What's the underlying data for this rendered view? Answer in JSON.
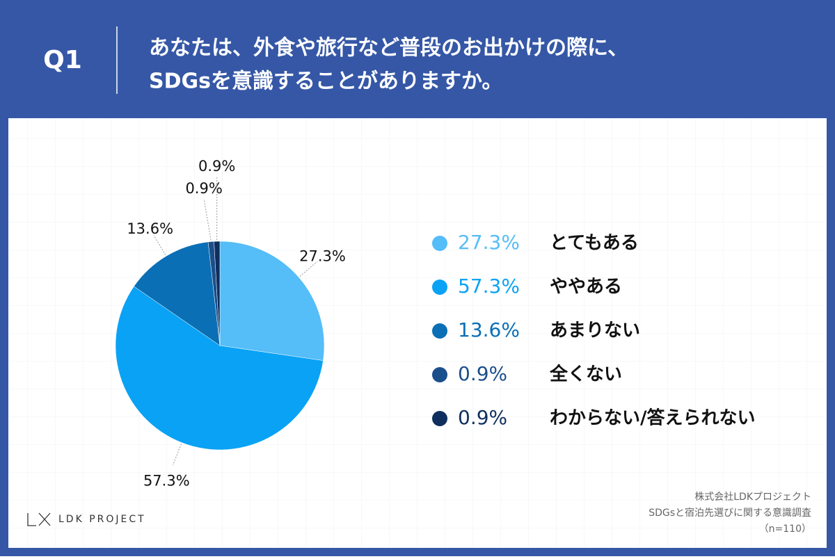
{
  "header": {
    "label": "Q1",
    "question": [
      "あなたは、外食や旅行など普段のお出かけの際に、",
      "SDGsを意識することがありますか。"
    ]
  },
  "chart_data": {
    "type": "pie",
    "categories": [
      "とてもある",
      "ややある",
      "あまりない",
      "全くない",
      "わからない/答えられない"
    ],
    "values": [
      27.3,
      57.3,
      13.6,
      0.9,
      0.9
    ],
    "value_labels": [
      "27.3%",
      "57.3%",
      "13.6%",
      "0.9%",
      "0.9%"
    ],
    "colors": [
      "#55bdf7",
      "#0aa2f5",
      "#0a6fb5",
      "#1b4f8b",
      "#0e2f5e"
    ],
    "legend": "right"
  },
  "footer": {
    "logo": "LDK PROJECT",
    "credits": [
      "株式会社LDKプロジェクト",
      "SDGsと宿泊先選びに関する意識調査",
      "（n=110）"
    ]
  }
}
